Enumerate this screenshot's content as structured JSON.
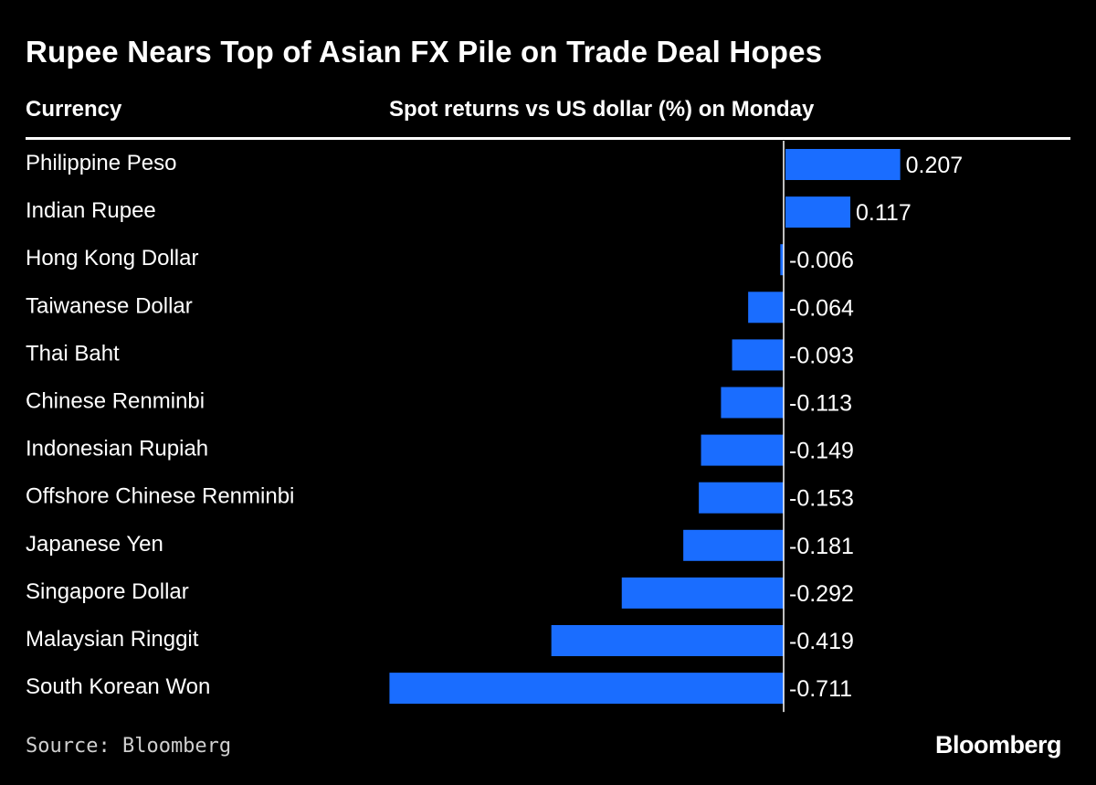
{
  "header": {
    "title": "Rupee Nears Top of Asian FX Pile on Trade Deal Hopes",
    "currency_label": "Currency",
    "returns_label": "Spot returns vs US dollar (%) on Monday"
  },
  "footer": {
    "source": "Source: Bloomberg",
    "brand": "Bloomberg"
  },
  "colors": {
    "bar": "#1a6dff",
    "background": "#000000",
    "text": "#ffffff"
  },
  "chart_data": {
    "type": "bar",
    "orientation": "horizontal",
    "title": "Rupee Nears Top of Asian FX Pile on Trade Deal Hopes",
    "xlabel": "Spot returns vs US dollar (%) on Monday",
    "ylabel": "Currency",
    "categories": [
      "Philippine Peso",
      "Indian Rupee",
      "Hong Kong Dollar",
      "Taiwanese Dollar",
      "Thai Baht",
      "Chinese Renminbi",
      "Indonesian Rupiah",
      "Offshore Chinese Renminbi",
      "Japanese Yen",
      "Singapore Dollar",
      "Malaysian Ringgit",
      "South Korean Won"
    ],
    "values": [
      0.207,
      0.117,
      -0.006,
      -0.064,
      -0.093,
      -0.113,
      -0.149,
      -0.153,
      -0.181,
      -0.292,
      -0.419,
      -0.711
    ],
    "value_labels": [
      "0.207",
      "0.117",
      "-0.006",
      "-0.064",
      "-0.093",
      "-0.113",
      "-0.149",
      "-0.153",
      "-0.181",
      "-0.292",
      "-0.419",
      "-0.711"
    ],
    "xlim": [
      -0.711,
      0.207
    ],
    "grid": false
  }
}
